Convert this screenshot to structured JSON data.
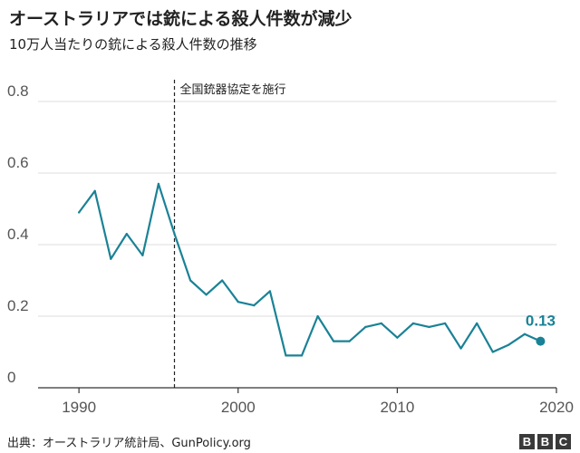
{
  "title": "オーストラリアでは銃による殺人件数が減少",
  "subtitle": "10万人当たりの銃による殺人件数の推移",
  "footer": "出典：オーストラリア統計局、GunPolicy.org",
  "logo": {
    "letters": [
      "B",
      "B",
      "C"
    ]
  },
  "colors": {
    "line": "#1a8296",
    "grid": "#dddddd",
    "axis": "#333333",
    "text": "#555555"
  },
  "chart_data": {
    "type": "line",
    "title": "オーストラリアでは銃による殺人件数が減少",
    "subtitle": "10万人当たりの銃による殺人件数の推移",
    "xlabel": "",
    "ylabel": "",
    "xlim": [
      1988,
      2020
    ],
    "ylim": [
      0,
      0.8
    ],
    "x_ticks": [
      1990,
      2000,
      2010,
      2020
    ],
    "y_ticks": [
      0,
      0.2,
      0.4,
      0.6,
      0.8
    ],
    "y_tick_labels": [
      "0",
      "0.2",
      "0.4",
      "0.6",
      "0.8"
    ],
    "grid": true,
    "series": [
      {
        "name": "10万人当たりの銃による殺人件数",
        "x": [
          1990,
          1991,
          1992,
          1993,
          1994,
          1995,
          1996,
          1997,
          1998,
          1999,
          2000,
          2001,
          2002,
          2003,
          2004,
          2005,
          2006,
          2007,
          2008,
          2009,
          2010,
          2011,
          2012,
          2013,
          2014,
          2015,
          2016,
          2017,
          2018,
          2019
        ],
        "values": [
          0.49,
          0.55,
          0.36,
          0.43,
          0.37,
          0.57,
          0.43,
          0.3,
          0.26,
          0.3,
          0.24,
          0.23,
          0.27,
          0.09,
          0.09,
          0.2,
          0.13,
          0.13,
          0.17,
          0.18,
          0.14,
          0.18,
          0.17,
          0.18,
          0.11,
          0.18,
          0.1,
          0.12,
          0.15,
          0.13
        ]
      }
    ],
    "annotations": [
      {
        "type": "vline",
        "x": 1996,
        "label": "全国銃器協定を施行"
      },
      {
        "type": "endpoint",
        "x": 2019,
        "value": 0.13,
        "label": "0.13"
      }
    ]
  }
}
